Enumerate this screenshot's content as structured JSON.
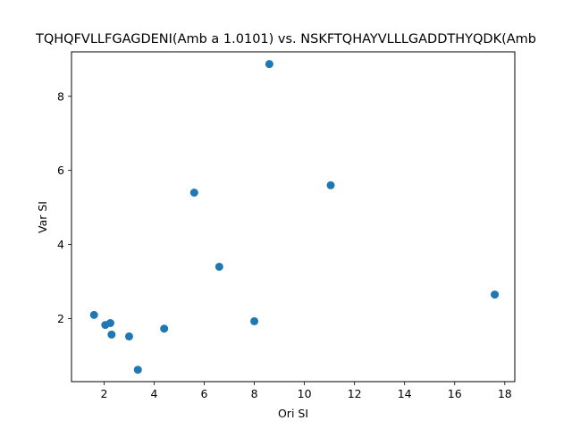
{
  "chart_data": {
    "type": "scatter",
    "title": "TQHQFVLLFGAGDENI(Amb a 1.0101) vs. NSKFTQHAYVLLLGADDTHYQDK(Amb",
    "xlabel": "Ori SI",
    "ylabel": "Var SI",
    "xlim": [
      0.7,
      18.4
    ],
    "ylim": [
      0.3,
      9.2
    ],
    "xticks": [
      2,
      4,
      6,
      8,
      10,
      12,
      14,
      16,
      18
    ],
    "yticks": [
      2,
      4,
      6,
      8
    ],
    "grid": false,
    "marker_color": "#1f77b4",
    "points": [
      {
        "x": 1.6,
        "y": 2.1
      },
      {
        "x": 2.05,
        "y": 1.83
      },
      {
        "x": 2.25,
        "y": 1.88
      },
      {
        "x": 2.3,
        "y": 1.57
      },
      {
        "x": 3.0,
        "y": 1.52
      },
      {
        "x": 3.35,
        "y": 0.62
      },
      {
        "x": 4.4,
        "y": 1.73
      },
      {
        "x": 5.6,
        "y": 5.4
      },
      {
        "x": 6.6,
        "y": 3.4
      },
      {
        "x": 8.0,
        "y": 1.93
      },
      {
        "x": 8.6,
        "y": 8.87
      },
      {
        "x": 11.05,
        "y": 5.6
      },
      {
        "x": 17.6,
        "y": 2.65
      }
    ]
  }
}
